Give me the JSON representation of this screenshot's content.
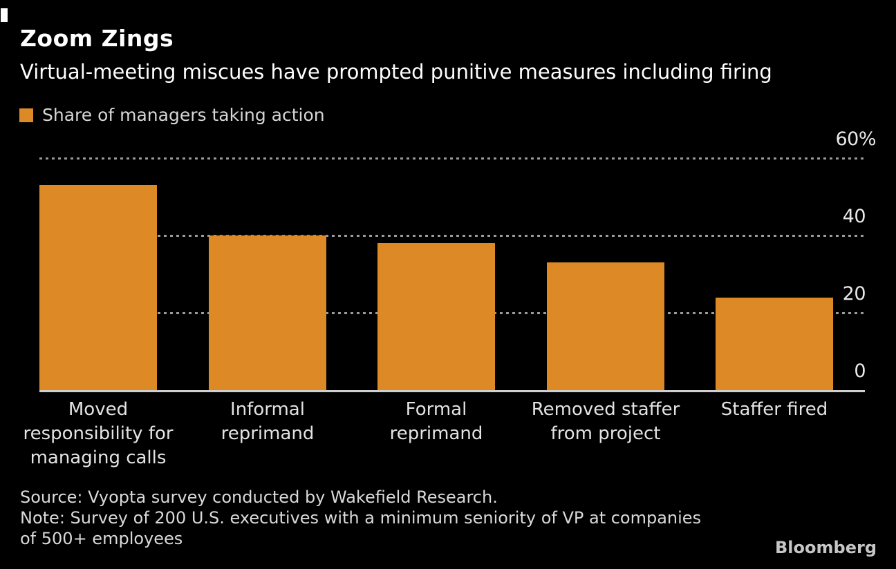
{
  "header": {
    "title": "Zoom Zings",
    "subtitle": "Virtual-meeting miscues have prompted punitive measures including firing"
  },
  "legend": {
    "label": "Share of managers taking action"
  },
  "chart_data": {
    "type": "bar",
    "title": "Zoom Zings",
    "subtitle": "Virtual-meeting miscues have prompted punitive measures including firing",
    "legend_label": "Share of managers taking action",
    "unit": "percent share of managers",
    "categories": [
      "Moved\nresponsibility for\nmanaging calls",
      "Informal\nreprimand",
      "Formal\nreprimand",
      "Removed staffer\nfrom project",
      "Staffer fired"
    ],
    "values": [
      53,
      40,
      38,
      33,
      24
    ],
    "ylim": [
      0,
      60
    ],
    "yticks": [
      {
        "value": 60,
        "label": "60%"
      },
      {
        "value": 40,
        "label": "40"
      },
      {
        "value": 20,
        "label": "20"
      },
      {
        "value": 0,
        "label": "0"
      }
    ],
    "grid": "dotted horizontal gridlines at 20/40/60 with labels above-right, solid zero baseline",
    "legend_position": "top-left",
    "bar_color": "#dd8a26"
  },
  "colors": {
    "background": "#000000",
    "bar": "#dd8a26",
    "title_text": "#ffffff",
    "axis_text": "#e8e8e8",
    "category_text": "#e3e3e3",
    "legend_text": "#d6d6d6",
    "source_text": "#d9d9d9",
    "gridline": "#9a9a9a",
    "baseline": "#cfcfcf",
    "logo_text": "#c6c6c6"
  },
  "footer": {
    "source": "Source: Vyopta survey conducted by Wakefield Research.",
    "note": "Note: Survey of 200 U.S. executives with a minimum seniority of VP at companies\nof 500+ employees",
    "logo": "Bloomberg"
  }
}
